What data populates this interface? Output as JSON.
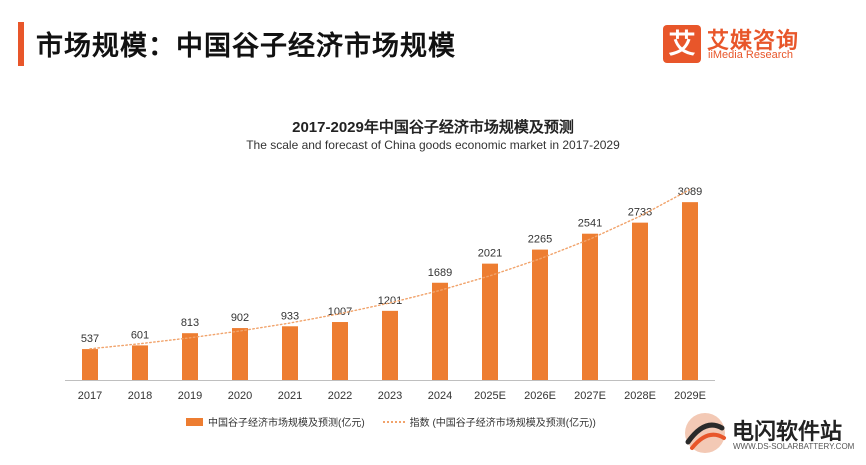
{
  "header": {
    "title": "市场规模：中国谷子经济市场规模"
  },
  "logo": {
    "mark": "艾",
    "name_cn": "艾媒咨询",
    "name_en": "iiMedia Research"
  },
  "chart_data": {
    "type": "bar",
    "title": "2017-2029年中国谷子经济市场规模及预测",
    "subtitle": "The scale and forecast of China goods economic market in 2017-2029",
    "categories": [
      "2017",
      "2018",
      "2019",
      "2020",
      "2021",
      "2022",
      "2023",
      "2024",
      "2025E",
      "2026E",
      "2027E",
      "2028E",
      "2029E"
    ],
    "series": [
      {
        "name": "中国谷子经济市场规模及预测(亿元)",
        "type": "bar",
        "color": "#ed7d31",
        "values": [
          537,
          601,
          813,
          902,
          933,
          1007,
          1201,
          1689,
          2021,
          2265,
          2541,
          2733,
          3089
        ]
      },
      {
        "name": "指数 (中国谷子经济市场规模及预测(亿元))",
        "type": "line",
        "style": "dotted",
        "color": "#f1a36b"
      }
    ],
    "ylim": [
      0,
      3300
    ],
    "grid": false,
    "legend_position": "bottom"
  },
  "watermark": {
    "name_cn": "电闪软件站",
    "name_en": "WWW.DS-SOLARBATTERY.COM"
  }
}
